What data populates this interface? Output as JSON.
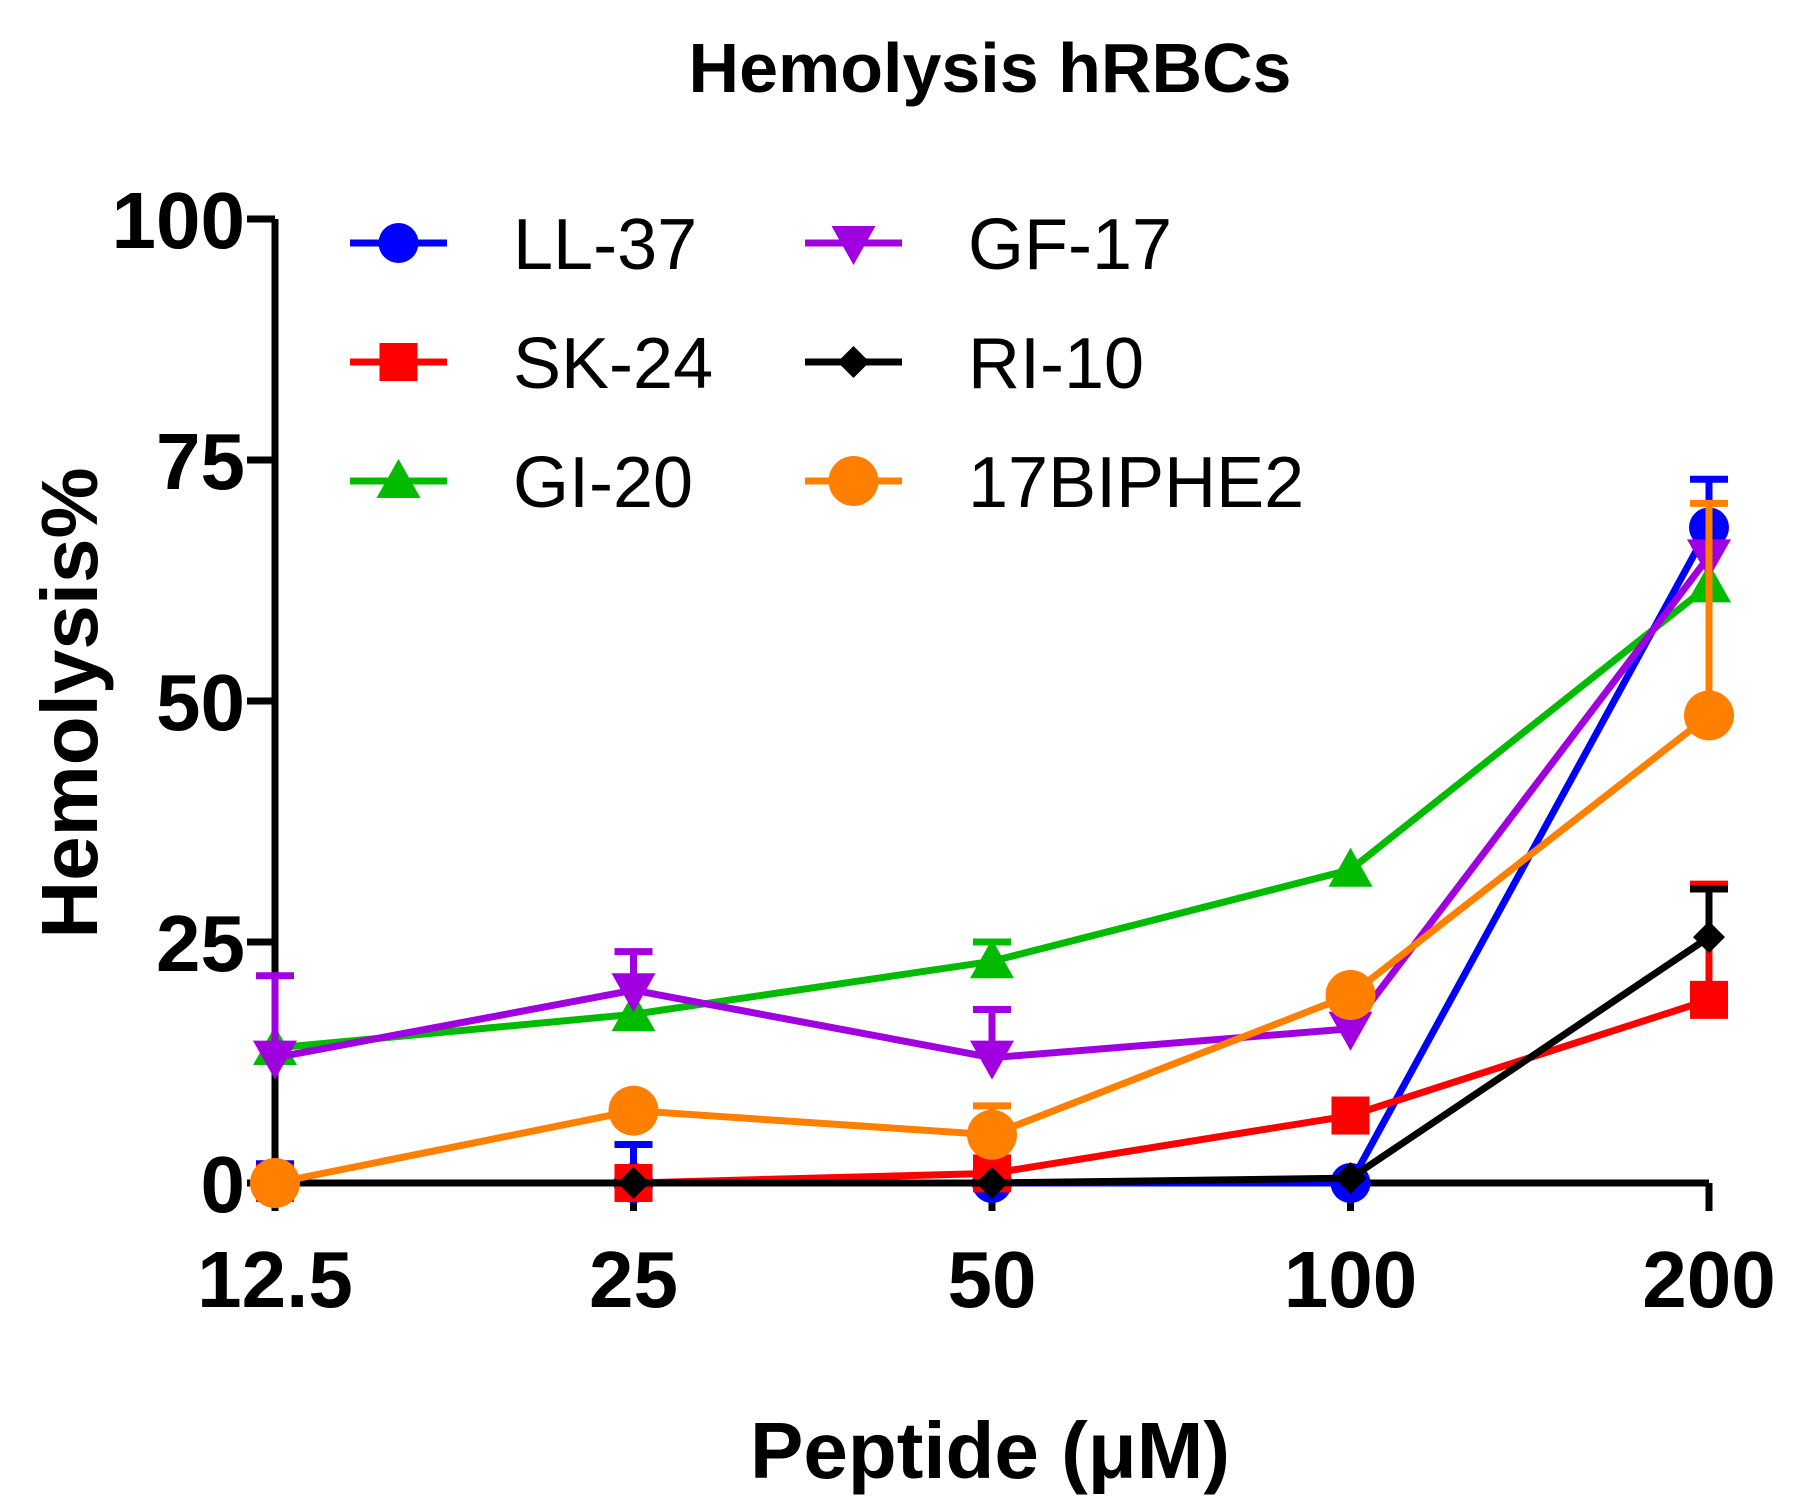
{
  "chart_data": {
    "type": "line",
    "title": "Hemolysis hRBCs",
    "xlabel": "Peptide (μM)",
    "ylabel": "Hemolysis%",
    "categories": [
      "12.5",
      "25",
      "50",
      "100",
      "200"
    ],
    "ylim": [
      0,
      100
    ],
    "yticks": [
      "0",
      "25",
      "50",
      "75",
      "100"
    ],
    "grid": false,
    "legend_position": "top-left",
    "series": [
      {
        "name": "LL-37",
        "color": "#0000ff",
        "marker": "circle",
        "values": [
          0,
          0,
          0,
          0,
          68
        ],
        "errors": [
          2,
          4,
          0,
          0,
          5
        ]
      },
      {
        "name": "SK-24",
        "color": "#ff0000",
        "marker": "square",
        "values": [
          0,
          0,
          1,
          7,
          19
        ],
        "errors": [
          0,
          0,
          0,
          0,
          12
        ]
      },
      {
        "name": "GI-20",
        "color": "#00bb00",
        "marker": "triangle-up",
        "values": [
          14,
          17.5,
          23,
          32.5,
          62
        ],
        "errors": [
          0,
          0,
          2,
          0,
          0
        ]
      },
      {
        "name": "GF-17",
        "color": "#a000e0",
        "marker": "triangle-down",
        "values": [
          13,
          20,
          13,
          16,
          65
        ],
        "errors": [
          8.5,
          4,
          5,
          0,
          0
        ]
      },
      {
        "name": "RI-10",
        "color": "#000000",
        "marker": "diamond",
        "values": [
          0,
          0,
          0,
          0.5,
          25.5
        ],
        "errors": [
          0,
          0,
          0,
          0,
          5
        ]
      },
      {
        "name": "17BIPHE2",
        "color": "#ff8000",
        "marker": "circle-large",
        "values": [
          0,
          7.5,
          5,
          19.5,
          48.5
        ],
        "errors": [
          0,
          0,
          3,
          0,
          22
        ]
      }
    ]
  }
}
